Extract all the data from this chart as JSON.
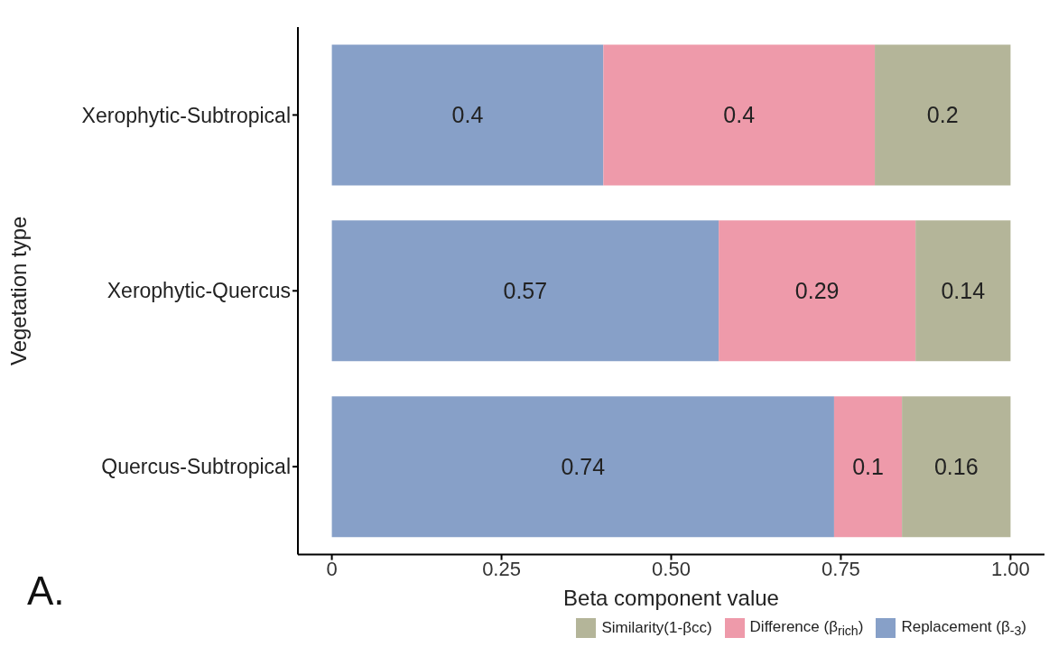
{
  "chart_data": {
    "type": "bar",
    "orientation": "horizontal",
    "stacked": true,
    "xlabel": "Beta component value",
    "ylabel": "Vegetation type",
    "annotations": [
      "A."
    ],
    "categories": [
      "Xerophytic-Subtropical",
      "Xerophytic-Quercus",
      "Quercus-Subtropical"
    ],
    "series": [
      {
        "name": "Replacement (β$_{-3}$)",
        "color": "#87a0c8",
        "values": [
          0.4,
          0.57,
          0.74
        ]
      },
      {
        "name": "Difference (β$_{rich}$)",
        "color": "#ee9aaa",
        "values": [
          0.4,
          0.29,
          0.1
        ]
      },
      {
        "name": "Similarity(1-βcc)",
        "color": "#b4b599",
        "values": [
          0.2,
          0.14,
          0.16
        ]
      }
    ],
    "xlim": [
      -0.05,
      1.05
    ],
    "xticks": [
      0,
      0.25,
      {
        "value": 0.5,
        "label": "0.50"
      },
      0.75,
      {
        "value": 1,
        "label": "1.00"
      }
    ],
    "data_labels": true,
    "grid": false,
    "legend": "bottom"
  }
}
